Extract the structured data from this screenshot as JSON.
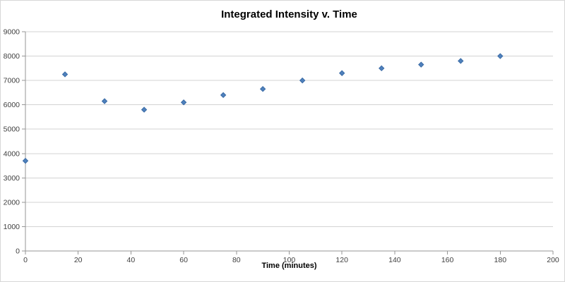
{
  "chart_data": {
    "type": "scatter",
    "title": "Integrated Intensity v. Time",
    "xlabel": "Time (minutes)",
    "ylabel": "",
    "x": [
      0,
      15,
      30,
      45,
      60,
      75,
      90,
      105,
      120,
      135,
      150,
      165,
      180
    ],
    "y": [
      3700,
      7250,
      6150,
      5800,
      6100,
      6400,
      6650,
      7000,
      7300,
      7500,
      7650,
      7800,
      8000
    ],
    "xlim": [
      0,
      200
    ],
    "ylim": [
      0,
      9000
    ],
    "xticks": [
      0,
      20,
      40,
      60,
      80,
      100,
      120,
      140,
      160,
      180,
      200
    ],
    "yticks": [
      0,
      1000,
      2000,
      3000,
      4000,
      5000,
      6000,
      7000,
      8000,
      9000
    ],
    "grid": "horizontal-only",
    "legend": "none",
    "marker": {
      "shape": "diamond",
      "size": 7,
      "fill": "#4F81BD",
      "stroke": "#3A6BA5"
    },
    "colors": {
      "gridline": "#D3D3D3",
      "axis": "#969696",
      "tick_label": "#3F3F3F",
      "title": "#000000",
      "chart_border": "#D7D7D7",
      "background": "#FFFFFF"
    }
  }
}
